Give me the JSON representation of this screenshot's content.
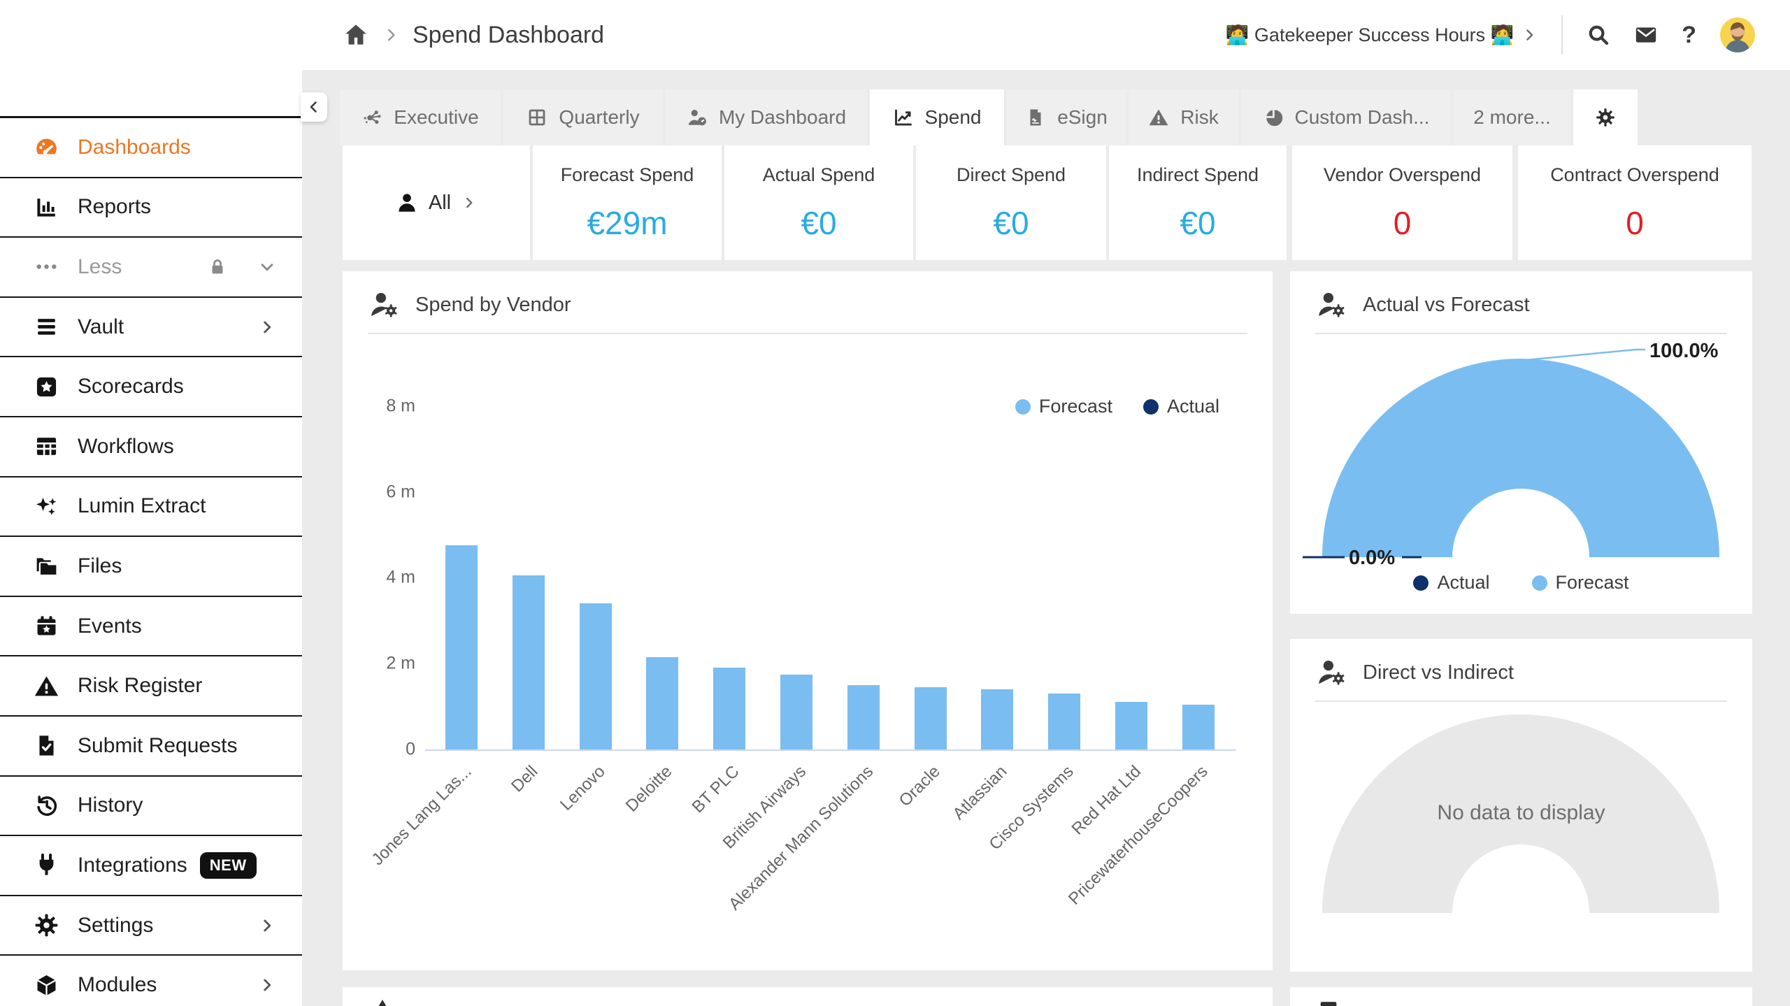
{
  "colors": {
    "accent_orange": "#ee7623",
    "kpi_blue": "#29abe2",
    "alert_red": "#e31e26",
    "forecast_blue": "#7abdf0",
    "actual_navy": "#10316b",
    "empty_gray": "#e8e8e8",
    "axis_line": "#ccd6eb"
  },
  "header": {
    "breadcrumb_title": "Spend Dashboard",
    "promo_link": "🧑‍💻 Gatekeeper Success Hours 🧑‍💻",
    "icons": [
      "home-icon",
      "search-icon",
      "mail-icon",
      "help-icon",
      "avatar"
    ]
  },
  "sidebar": {
    "items": [
      {
        "label": "Dashboards",
        "icon": "dashboards-gauge-icon",
        "active": true
      },
      {
        "label": "Reports",
        "icon": "reports-icon"
      },
      {
        "label": "Less",
        "icon": "ellipsis-icon",
        "muted": true,
        "lock": true,
        "chevron": "down"
      },
      {
        "label": "Vault",
        "icon": "vault-menu-icon",
        "chevron": "right"
      },
      {
        "label": "Scorecards",
        "icon": "scorecards-star-icon"
      },
      {
        "label": "Workflows",
        "icon": "workflows-table-icon"
      },
      {
        "label": "Lumin Extract",
        "icon": "sparkles-icon"
      },
      {
        "label": "Files",
        "icon": "folders-icon"
      },
      {
        "label": "Events",
        "icon": "calendar-icon"
      },
      {
        "label": "Risk Register",
        "icon": "warning-triangle-icon"
      },
      {
        "label": "Submit Requests",
        "icon": "document-check-icon"
      },
      {
        "label": "History",
        "icon": "history-clock-icon"
      },
      {
        "label": "Integrations",
        "icon": "plug-icon",
        "badge": "NEW"
      },
      {
        "label": "Settings",
        "icon": "gear-icon",
        "chevron": "right"
      },
      {
        "label": "Modules",
        "icon": "cube-icon",
        "chevron": "right"
      }
    ]
  },
  "tabs": [
    {
      "label": "Executive",
      "icon": "network-icon"
    },
    {
      "label": "Quarterly",
      "icon": "grid-icon"
    },
    {
      "label": "My Dashboard",
      "icon": "person-gauge-icon"
    },
    {
      "label": "Spend",
      "icon": "line-chart-icon",
      "active": true
    },
    {
      "label": "eSign",
      "icon": "esign-doc-icon"
    },
    {
      "label": "Risk",
      "icon": "warning-triangle-icon"
    },
    {
      "label": "Custom Dash...",
      "icon": "pie-icon"
    },
    {
      "label": "2 more...",
      "icon": null
    },
    {
      "label": "",
      "icon": "gear-icon",
      "active": true
    }
  ],
  "kpis": {
    "filter": {
      "label": "All"
    },
    "cards": [
      {
        "label": "Forecast Spend",
        "value": "€29m",
        "color": "blue"
      },
      {
        "label": "Actual Spend",
        "value": "€0",
        "color": "blue"
      },
      {
        "label": "Direct Spend",
        "value": "€0",
        "color": "blue"
      },
      {
        "label": "Indirect Spend",
        "value": "€0",
        "color": "blue"
      },
      {
        "label": "Vendor Overspend",
        "value": "0",
        "color": "red"
      },
      {
        "label": "Contract Overspend",
        "value": "0",
        "color": "red"
      }
    ]
  },
  "panels": {
    "spend_by_vendor": {
      "title": "Spend by Vendor",
      "legend": [
        {
          "label": "Forecast",
          "color": "#7abdf0"
        },
        {
          "label": "Actual",
          "color": "#10316b"
        }
      ]
    },
    "actual_vs_forecast": {
      "title": "Actual vs Forecast",
      "max_label": "100.0%",
      "min_label": "0.0%",
      "legend": [
        {
          "label": "Actual",
          "color": "#10316b"
        },
        {
          "label": "Forecast",
          "color": "#7abdf0"
        }
      ]
    },
    "direct_vs_indirect": {
      "title": "Direct vs Indirect",
      "empty_text": "No data to display"
    }
  },
  "chart_data": [
    {
      "type": "bar",
      "title": "Spend by Vendor",
      "categories": [
        "Jones Lang Las...",
        "Dell",
        "Lenovo",
        "Deloitte",
        "BT PLC",
        "British Airways",
        "Alexander Mann Solutions",
        "Oracle",
        "Atlassian",
        "Cisco Systems",
        "Red Hat Ltd",
        "PricewaterhouseCoopers"
      ],
      "series": [
        {
          "name": "Forecast",
          "values": [
            4.75,
            4.05,
            3.4,
            2.15,
            1.9,
            1.75,
            1.5,
            1.45,
            1.4,
            1.3,
            1.1,
            1.05
          ]
        },
        {
          "name": "Actual",
          "values": [
            0,
            0,
            0,
            0,
            0,
            0,
            0,
            0,
            0,
            0,
            0,
            0
          ]
        }
      ],
      "unit": "millions EUR",
      "ylim": [
        0,
        8
      ],
      "ytick_labels": [
        "0",
        "2 m",
        "4 m",
        "6 m",
        "8 m"
      ],
      "grid": false,
      "legend_position": "top-right"
    },
    {
      "type": "pie",
      "subtype": "half-donut",
      "title": "Actual vs Forecast",
      "slices": [
        {
          "label": "Actual",
          "value": 0.0
        },
        {
          "label": "Forecast",
          "value": 100.0
        }
      ],
      "unit": "%",
      "annotations": [
        "100.0%",
        "0.0%"
      ],
      "legend_position": "bottom"
    },
    {
      "type": "pie",
      "subtype": "half-donut",
      "title": "Direct vs Indirect",
      "slices": [],
      "empty_text": "No data to display"
    }
  ]
}
